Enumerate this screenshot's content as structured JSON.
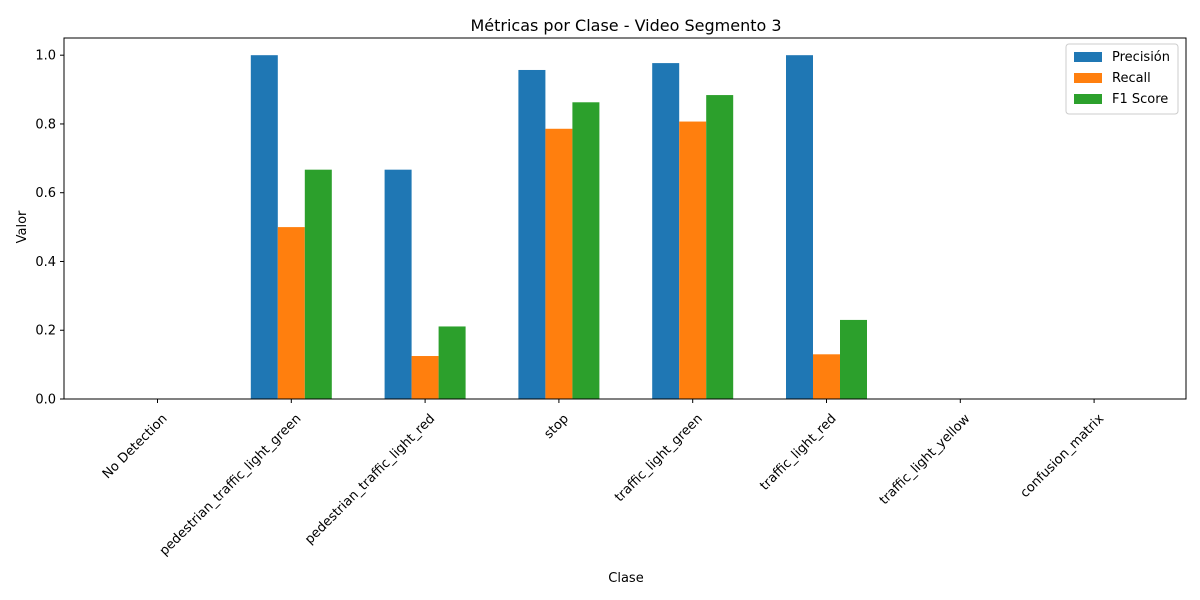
{
  "chart_data": {
    "type": "bar",
    "title": "Métricas por Clase - Video Segmento 3",
    "xlabel": "Clase",
    "ylabel": "Valor",
    "ylim": [
      0,
      1.05
    ],
    "yticks": [
      "0.0",
      "0.2",
      "0.4",
      "0.6",
      "0.8",
      "1.0"
    ],
    "grid": false,
    "legend_position": "top-right",
    "categories": [
      "No Detection",
      "pedestrian_traffic_light_green",
      "pedestrian_traffic_light_red",
      "stop",
      "traffic_light_green",
      "traffic_light_red",
      "traffic_light_yellow",
      "confusion_matrix"
    ],
    "series": [
      {
        "name": "Precisión",
        "color": "#1f77b4",
        "values": [
          0,
          1.0,
          0.667,
          0.957,
          0.977,
          1.0,
          0,
          0
        ]
      },
      {
        "name": "Recall",
        "color": "#ff7f0e",
        "values": [
          0,
          0.5,
          0.125,
          0.786,
          0.807,
          0.13,
          0,
          0
        ]
      },
      {
        "name": "F1 Score",
        "color": "#2ca02c",
        "values": [
          0,
          0.667,
          0.211,
          0.863,
          0.884,
          0.23,
          0,
          0
        ]
      }
    ]
  }
}
